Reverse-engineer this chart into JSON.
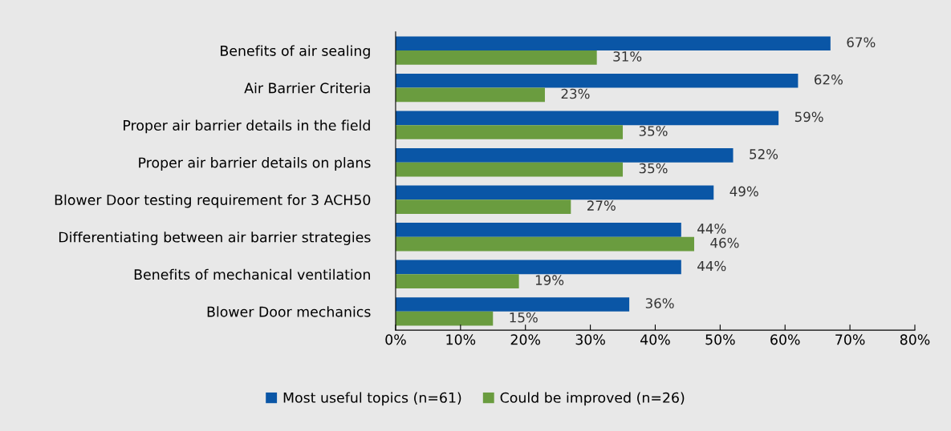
{
  "chart_data": {
    "type": "bar",
    "orientation": "horizontal",
    "categories": [
      "Benefits of air sealing",
      "Air Barrier Criteria",
      "Proper air barrier details in the field",
      "Proper air barrier details on plans",
      "Blower Door testing requirement for 3 ACH50",
      "Differentiating between air barrier strategies",
      "Benefits of mechanical ventilation",
      "Blower Door mechanics"
    ],
    "series": [
      {
        "name": "Most useful topics (n=61)",
        "color": "#0a56a6",
        "values": [
          67,
          62,
          59,
          52,
          49,
          44,
          44,
          36
        ],
        "value_labels": [
          "67%",
          "62%",
          "59%",
          "52%",
          "49%",
          "44%",
          "44%",
          "36%"
        ]
      },
      {
        "name": "Could be improved (n=26)",
        "color": "#6a9c3f",
        "values": [
          31,
          23,
          35,
          35,
          27,
          46,
          19,
          15
        ],
        "value_labels": [
          "31%",
          "23%",
          "35%",
          "35%",
          "27%",
          "46%",
          "19%",
          "15%"
        ]
      }
    ],
    "xlim": [
      0,
      80
    ],
    "xticks": [
      {
        "value": 0,
        "label": "0%"
      },
      {
        "value": 10,
        "label": "10%"
      },
      {
        "value": 20,
        "label": "20%"
      },
      {
        "value": 30,
        "label": "30%"
      },
      {
        "value": 40,
        "label": "40%"
      },
      {
        "value": 50,
        "label": "50%"
      },
      {
        "value": 60,
        "label": "60%"
      },
      {
        "value": 70,
        "label": "70%"
      },
      {
        "value": 80,
        "label": "80%"
      }
    ],
    "grid": false,
    "legend": "bottom"
  }
}
